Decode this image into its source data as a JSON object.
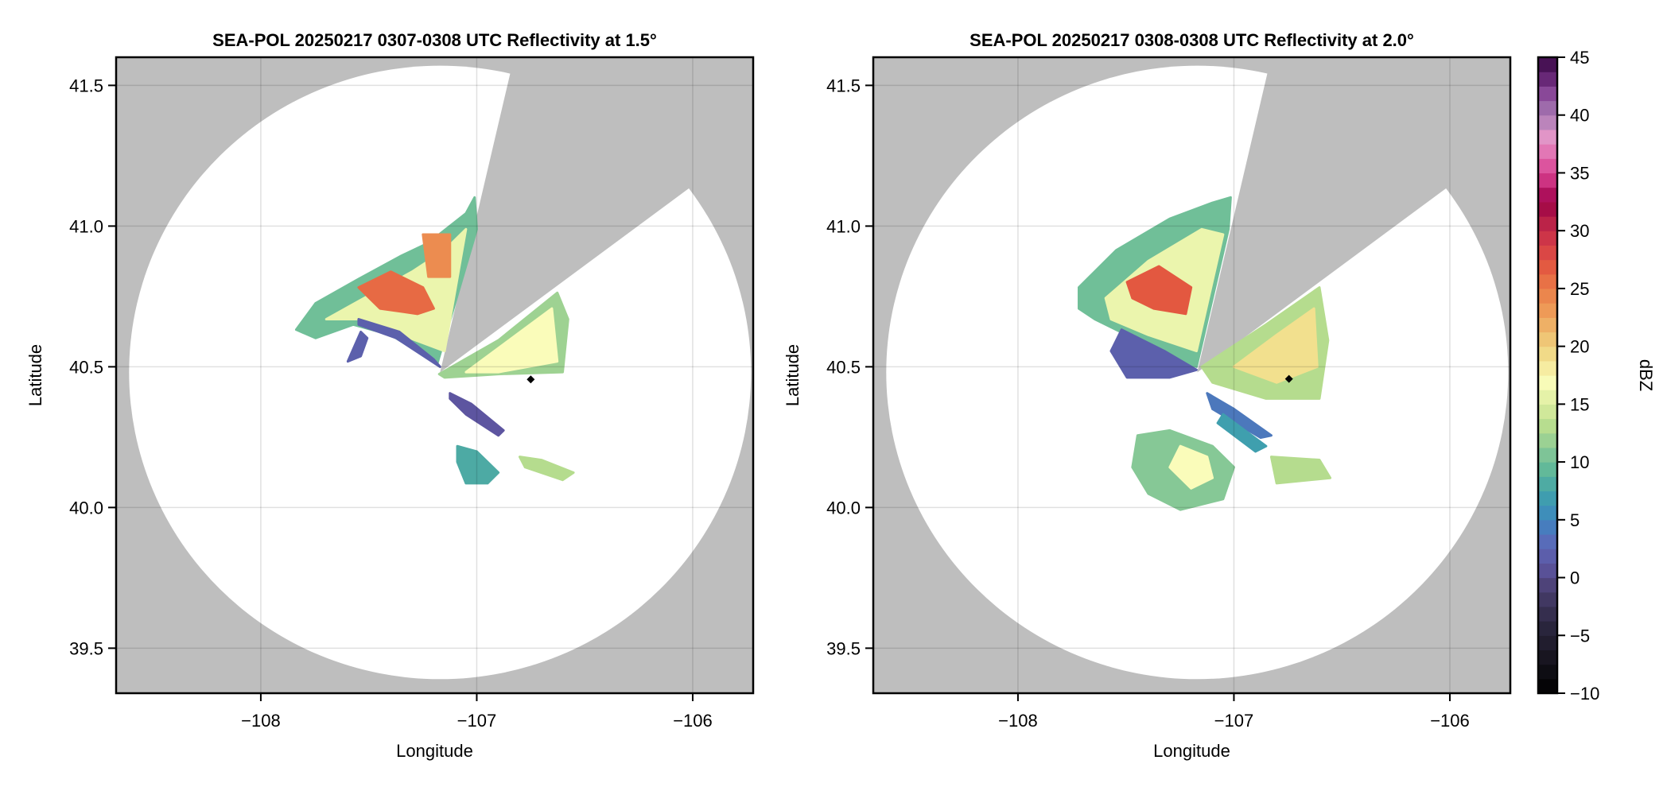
{
  "chart_data": {
    "type": "heatmap",
    "subtype": "radar-ppi",
    "colormap_stops": [
      [
        -10,
        "#000000"
      ],
      [
        -7,
        "#17141f"
      ],
      [
        -4,
        "#2c2740"
      ],
      [
        -1,
        "#4a3f70"
      ],
      [
        1,
        "#5d55a0"
      ],
      [
        3,
        "#5a6ab8"
      ],
      [
        5,
        "#3e86c0"
      ],
      [
        7,
        "#3f9fae"
      ],
      [
        9,
        "#5ab59a"
      ],
      [
        11,
        "#86c896"
      ],
      [
        13,
        "#b5dc8e"
      ],
      [
        15,
        "#dceea0"
      ],
      [
        17,
        "#fafcba"
      ],
      [
        19,
        "#f2e08e"
      ],
      [
        21,
        "#eec070"
      ],
      [
        23,
        "#ee9c58"
      ],
      [
        25,
        "#ea7c48"
      ],
      [
        27,
        "#e35840"
      ],
      [
        29,
        "#d33a48"
      ],
      [
        31,
        "#b51e48"
      ],
      [
        32.5,
        "#9c0046"
      ],
      [
        34,
        "#c8297a"
      ],
      [
        36,
        "#e05ea6"
      ],
      [
        38,
        "#e597c8"
      ],
      [
        40,
        "#a87cb5"
      ],
      [
        42,
        "#874596"
      ],
      [
        43.5,
        "#5e1e6c"
      ],
      [
        45,
        "#380a44"
      ]
    ],
    "colorbar": {
      "label": "dBZ",
      "range": [
        -10,
        45
      ],
      "ticks": [
        -10,
        -5,
        0,
        5,
        10,
        15,
        20,
        25,
        30,
        35,
        40,
        45
      ],
      "tick_labels": [
        "−10",
        "−5",
        "0",
        "5",
        "10",
        "15",
        "20",
        "25",
        "30",
        "35",
        "40",
        "45"
      ]
    },
    "missing_color": "#bebebe",
    "panels": [
      {
        "title": "SEA-POL 20250217 0307-0308 UTC Reflectivity at 1.5°",
        "xlabel": "Longitude",
        "ylabel": "Latitude",
        "xlim": [
          -108.67,
          -105.72
        ],
        "ylim": [
          39.34,
          41.6
        ],
        "xticks": [
          -108,
          -107,
          -106
        ],
        "xtick_labels": [
          "−108",
          "−107",
          "−106"
        ],
        "yticks": [
          39.5,
          40.0,
          40.5,
          41.0,
          41.5
        ],
        "ytick_labels": [
          "39.5",
          "40.0",
          "40.5",
          "41.0",
          "41.5"
        ],
        "radar": {
          "lon": -107.17,
          "lat": 40.48,
          "range_deg_lat": 1.09,
          "range_deg_lon": 1.44,
          "blocked_azimuth_deg": [
            13.2,
            53.5
          ]
        },
        "marker": {
          "lon": -106.75,
          "lat": 40.455
        },
        "echoes": [
          {
            "dbz": 10,
            "pts": [
              [
                -107.836,
                40.632
              ],
              [
                -107.746,
                40.726
              ],
              [
                -107.547,
                40.812
              ],
              [
                -107.348,
                40.895
              ],
              [
                -107.224,
                40.94
              ],
              [
                -107.05,
                41.045
              ],
              [
                -107.01,
                41.102
              ],
              [
                -107.0,
                40.989
              ],
              [
                -107.184,
                40.508
              ],
              [
                -107.274,
                40.556
              ],
              [
                -107.398,
                40.613
              ],
              [
                -107.572,
                40.65
              ],
              [
                -107.746,
                40.602
              ]
            ]
          },
          {
            "dbz": 16,
            "pts": [
              [
                -107.697,
                40.669
              ],
              [
                -107.522,
                40.744
              ],
              [
                -107.299,
                40.838
              ],
              [
                -107.149,
                40.914
              ],
              [
                -107.05,
                40.989
              ],
              [
                -107.149,
                40.556
              ],
              [
                -107.348,
                40.613
              ],
              [
                -107.547,
                40.669
              ]
            ]
          },
          {
            "dbz": 26,
            "pts": [
              [
                -107.547,
                40.782
              ],
              [
                -107.398,
                40.838
              ],
              [
                -107.249,
                40.782
              ],
              [
                -107.199,
                40.707
              ],
              [
                -107.274,
                40.688
              ],
              [
                -107.448,
                40.707
              ]
            ]
          },
          {
            "dbz": 24,
            "pts": [
              [
                -107.249,
                40.97
              ],
              [
                -107.124,
                40.97
              ],
              [
                -107.124,
                40.82
              ],
              [
                -107.224,
                40.82
              ]
            ]
          },
          {
            "dbz": 2,
            "pts": [
              [
                -107.547,
                40.65
              ],
              [
                -107.373,
                40.602
              ],
              [
                -107.17,
                40.5
              ],
              [
                -107.199,
                40.526
              ],
              [
                -107.358,
                40.624
              ],
              [
                -107.547,
                40.669
              ]
            ]
          },
          {
            "dbz": 2,
            "pts": [
              [
                -107.537,
                40.624
              ],
              [
                -107.507,
                40.602
              ],
              [
                -107.537,
                40.538
              ],
              [
                -107.597,
                40.519
              ]
            ]
          },
          {
            "dbz": 12,
            "pts": [
              [
                -107.174,
                40.474
              ],
              [
                -106.9,
                40.594
              ],
              [
                -106.627,
                40.763
              ],
              [
                -106.577,
                40.669
              ],
              [
                -106.602,
                40.481
              ],
              [
                -106.9,
                40.474
              ],
              [
                -107.149,
                40.462
              ]
            ]
          },
          {
            "dbz": 17,
            "pts": [
              [
                -107.05,
                40.481
              ],
              [
                -106.851,
                40.594
              ],
              [
                -106.652,
                40.707
              ],
              [
                -106.627,
                40.519
              ],
              [
                -106.9,
                40.481
              ]
            ]
          },
          {
            "dbz": 1,
            "pts": [
              [
                -107.124,
                40.406
              ],
              [
                -107.025,
                40.368
              ],
              [
                -106.876,
                40.274
              ],
              [
                -106.9,
                40.256
              ],
              [
                -107.05,
                40.331
              ],
              [
                -107.124,
                40.387
              ]
            ]
          },
          {
            "dbz": 8,
            "pts": [
              [
                -107.09,
                40.218
              ],
              [
                -107.0,
                40.199
              ],
              [
                -106.9,
                40.124
              ],
              [
                -106.95,
                40.086
              ],
              [
                -107.05,
                40.086
              ],
              [
                -107.09,
                40.162
              ]
            ]
          },
          {
            "dbz": 13,
            "pts": [
              [
                -106.801,
                40.18
              ],
              [
                -106.701,
                40.169
              ],
              [
                -106.552,
                40.124
              ],
              [
                -106.602,
                40.098
              ],
              [
                -106.776,
                40.143
              ]
            ]
          }
        ]
      },
      {
        "title": "SEA-POL 20250217 0308-0308 UTC Reflectivity at 2.0°",
        "xlabel": "Longitude",
        "ylabel": "Latitude",
        "xlim": [
          -108.67,
          -105.72
        ],
        "ylim": [
          39.34,
          41.6
        ],
        "xticks": [
          -108,
          -107,
          -106
        ],
        "xtick_labels": [
          "−108",
          "−107",
          "−106"
        ],
        "yticks": [
          39.5,
          40.0,
          40.5,
          41.0,
          41.5
        ],
        "ytick_labels": [
          "39.5",
          "40.0",
          "40.5",
          "41.0",
          "41.5"
        ],
        "radar": {
          "lon": -107.17,
          "lat": 40.48,
          "range_deg_lat": 1.09,
          "range_deg_lon": 1.44,
          "blocked_azimuth_deg": [
            13.2,
            53.5
          ]
        },
        "marker": {
          "lon": -106.745,
          "lat": 40.457
        },
        "echoes": [
          {
            "dbz": 10,
            "pts": [
              [
                -107.718,
                40.782
              ],
              [
                -107.545,
                40.914
              ],
              [
                -107.297,
                41.026
              ],
              [
                -107.099,
                41.083
              ],
              [
                -107.015,
                41.102
              ],
              [
                -107.025,
                40.989
              ],
              [
                -107.173,
                40.5
              ],
              [
                -107.297,
                40.538
              ],
              [
                -107.495,
                40.613
              ],
              [
                -107.644,
                40.669
              ],
              [
                -107.718,
                40.707
              ]
            ]
          },
          {
            "dbz": 16,
            "pts": [
              [
                -107.594,
                40.744
              ],
              [
                -107.396,
                40.876
              ],
              [
                -107.149,
                40.989
              ],
              [
                -107.05,
                40.97
              ],
              [
                -107.173,
                40.556
              ],
              [
                -107.396,
                40.613
              ],
              [
                -107.569,
                40.669
              ]
            ]
          },
          {
            "dbz": 27,
            "pts": [
              [
                -107.495,
                40.801
              ],
              [
                -107.347,
                40.857
              ],
              [
                -107.198,
                40.782
              ],
              [
                -107.223,
                40.688
              ],
              [
                -107.371,
                40.707
              ],
              [
                -107.47,
                40.744
              ]
            ]
          },
          {
            "dbz": 2,
            "pts": [
              [
                -107.52,
                40.632
              ],
              [
                -107.322,
                40.556
              ],
              [
                -107.173,
                40.489
              ],
              [
                -107.297,
                40.462
              ],
              [
                -107.495,
                40.462
              ],
              [
                -107.569,
                40.556
              ]
            ]
          },
          {
            "dbz": 13,
            "pts": [
              [
                -107.149,
                40.5
              ],
              [
                -106.851,
                40.65
              ],
              [
                -106.604,
                40.782
              ],
              [
                -106.564,
                40.594
              ],
              [
                -106.604,
                40.387
              ],
              [
                -106.851,
                40.387
              ],
              [
                -107.099,
                40.444
              ]
            ]
          },
          {
            "dbz": 19,
            "pts": [
              [
                -107.0,
                40.5
              ],
              [
                -106.802,
                40.613
              ],
              [
                -106.629,
                40.707
              ],
              [
                -106.614,
                40.5
              ],
              [
                -106.802,
                40.444
              ]
            ]
          },
          {
            "dbz": 4,
            "pts": [
              [
                -107.124,
                40.406
              ],
              [
                -107.0,
                40.35
              ],
              [
                -106.827,
                40.256
              ],
              [
                -106.876,
                40.248
              ],
              [
                -107.099,
                40.35
              ]
            ]
          },
          {
            "dbz": 7,
            "pts": [
              [
                -107.05,
                40.331
              ],
              [
                -106.851,
                40.218
              ],
              [
                -106.9,
                40.199
              ],
              [
                -107.075,
                40.3
              ]
            ]
          },
          {
            "dbz": 11,
            "pts": [
              [
                -107.446,
                40.256
              ],
              [
                -107.297,
                40.274
              ],
              [
                -107.099,
                40.218
              ],
              [
                -107.0,
                40.143
              ],
              [
                -107.05,
                40.03
              ],
              [
                -107.248,
                39.992
              ],
              [
                -107.396,
                40.049
              ],
              [
                -107.47,
                40.143
              ]
            ]
          },
          {
            "dbz": 17,
            "pts": [
              [
                -107.248,
                40.218
              ],
              [
                -107.124,
                40.18
              ],
              [
                -107.099,
                40.105
              ],
              [
                -107.198,
                40.068
              ],
              [
                -107.297,
                40.143
              ]
            ]
          },
          {
            "dbz": 13,
            "pts": [
              [
                -106.827,
                40.18
              ],
              [
                -106.604,
                40.169
              ],
              [
                -106.554,
                40.105
              ],
              [
                -106.802,
                40.086
              ]
            ]
          }
        ]
      }
    ]
  }
}
